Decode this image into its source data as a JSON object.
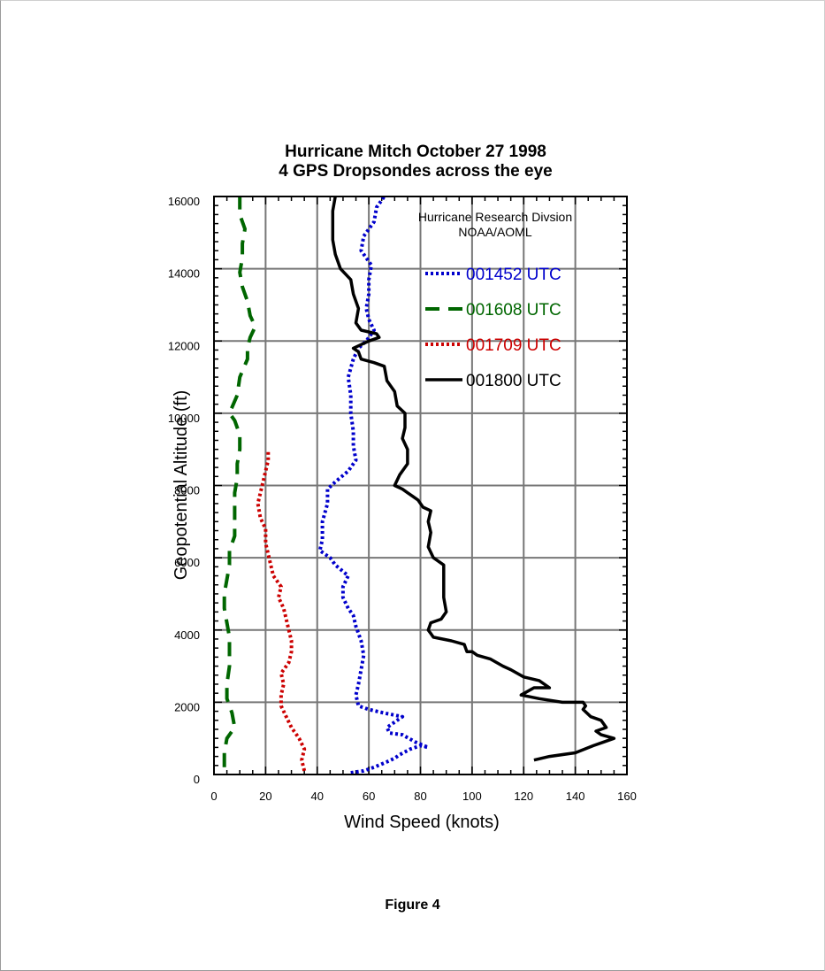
{
  "figure_caption": "Figure 4",
  "chart_data": {
    "type": "line",
    "title": "Hurricane Mitch October 27 1998",
    "subtitle": "4 GPS Dropsondes across the eye",
    "xlabel": "Wind Speed (knots)",
    "ylabel": "Geopotential Altitude (ft)",
    "xlim": [
      0,
      160
    ],
    "ylim": [
      0,
      16000
    ],
    "x_ticks": [
      "0",
      "20",
      "40",
      "60",
      "80",
      "100",
      "120",
      "140",
      "160"
    ],
    "y_ticks": [
      "0",
      "2000",
      "4000",
      "6000",
      "8000",
      "10000",
      "12000",
      "14000",
      "16000"
    ],
    "grid": true,
    "credit_line1": "Hurricane Research Divsion",
    "credit_line2": "NOAA/AOML",
    "legend_placement": "top-right",
    "series": [
      {
        "name": "001452 UTC",
        "color": "#0000cc",
        "style": "dotted",
        "points": [
          [
            53,
            50
          ],
          [
            58,
            100
          ],
          [
            62,
            200
          ],
          [
            67,
            350
          ],
          [
            70,
            450
          ],
          [
            72,
            550
          ],
          [
            76,
            700
          ],
          [
            80,
            800
          ],
          [
            83,
            750
          ],
          [
            78,
            900
          ],
          [
            73,
            1100
          ],
          [
            68,
            1150
          ],
          [
            67,
            1300
          ],
          [
            70,
            1450
          ],
          [
            73,
            1600
          ],
          [
            66,
            1700
          ],
          [
            60,
            1800
          ],
          [
            56,
            1900
          ],
          [
            55,
            2200
          ],
          [
            56,
            2500
          ],
          [
            57,
            2900
          ],
          [
            58,
            3300
          ],
          [
            57,
            3700
          ],
          [
            55,
            4100
          ],
          [
            54,
            4400
          ],
          [
            52,
            4600
          ],
          [
            50,
            4900
          ],
          [
            50,
            5200
          ],
          [
            52,
            5500
          ],
          [
            47,
            5800
          ],
          [
            45,
            6000
          ],
          [
            41,
            6200
          ],
          [
            42,
            6500
          ],
          [
            42,
            7000
          ],
          [
            44,
            7500
          ],
          [
            44,
            7900
          ],
          [
            47,
            8100
          ],
          [
            52,
            8400
          ],
          [
            55,
            8700
          ],
          [
            54,
            9100
          ],
          [
            54,
            9500
          ],
          [
            53,
            10000
          ],
          [
            53,
            10500
          ],
          [
            52,
            11000
          ],
          [
            54,
            11500
          ],
          [
            56,
            11800
          ],
          [
            59,
            12000
          ],
          [
            62,
            12300
          ],
          [
            60,
            12600
          ],
          [
            59,
            12900
          ],
          [
            60,
            13300
          ],
          [
            60,
            13700
          ],
          [
            61,
            14100
          ],
          [
            57,
            14500
          ],
          [
            58,
            14900
          ],
          [
            62,
            15300
          ],
          [
            63,
            15700
          ],
          [
            66,
            16000
          ]
        ]
      },
      {
        "name": "001608 UTC",
        "color": "#006600",
        "style": "dashed",
        "points": [
          [
            4,
            200
          ],
          [
            4,
            600
          ],
          [
            5,
            1000
          ],
          [
            8,
            1300
          ],
          [
            7,
            1700
          ],
          [
            5,
            2100
          ],
          [
            5,
            2500
          ],
          [
            6,
            3000
          ],
          [
            6,
            3400
          ],
          [
            6,
            3800
          ],
          [
            5,
            4200
          ],
          [
            4,
            4600
          ],
          [
            4,
            5000
          ],
          [
            5,
            5400
          ],
          [
            6,
            5800
          ],
          [
            6,
            6200
          ],
          [
            8,
            6600
          ],
          [
            8,
            7000
          ],
          [
            8,
            7400
          ],
          [
            8,
            7800
          ],
          [
            9,
            8200
          ],
          [
            9,
            8600
          ],
          [
            10,
            9000
          ],
          [
            10,
            9400
          ],
          [
            8,
            9800
          ],
          [
            6,
            10000
          ],
          [
            9,
            10500
          ],
          [
            10,
            11000
          ],
          [
            13,
            11500
          ],
          [
            13,
            11800
          ],
          [
            14,
            12100
          ],
          [
            16,
            12400
          ],
          [
            14,
            12700
          ],
          [
            13,
            13100
          ],
          [
            11,
            13500
          ],
          [
            10,
            13900
          ],
          [
            11,
            14300
          ],
          [
            11,
            14700
          ],
          [
            12,
            15100
          ],
          [
            10,
            15500
          ],
          [
            10,
            15800
          ],
          [
            10,
            16000
          ]
        ]
      },
      {
        "name": "001709 UTC",
        "color": "#cc0000",
        "style": "dotted",
        "points": [
          [
            35,
            100
          ],
          [
            34,
            400
          ],
          [
            35,
            700
          ],
          [
            33,
            1000
          ],
          [
            30,
            1300
          ],
          [
            28,
            1600
          ],
          [
            26,
            1900
          ],
          [
            26,
            2200
          ],
          [
            27,
            2500
          ],
          [
            26,
            2800
          ],
          [
            29,
            3100
          ],
          [
            30,
            3400
          ],
          [
            30,
            3700
          ],
          [
            29,
            4000
          ],
          [
            28,
            4300
          ],
          [
            27,
            4600
          ],
          [
            25,
            4900
          ],
          [
            26,
            5200
          ],
          [
            23,
            5500
          ],
          [
            22,
            5800
          ],
          [
            21,
            6100
          ],
          [
            20,
            6400
          ],
          [
            20,
            6800
          ],
          [
            18,
            7100
          ],
          [
            17,
            7500
          ],
          [
            18,
            7800
          ],
          [
            19,
            8100
          ],
          [
            20,
            8400
          ],
          [
            21,
            8700
          ],
          [
            21,
            9000
          ]
        ]
      },
      {
        "name": "001800 UTC",
        "color": "#000000",
        "style": "solid",
        "points": [
          [
            124,
            400
          ],
          [
            130,
            500
          ],
          [
            140,
            600
          ],
          [
            147,
            800
          ],
          [
            151,
            900
          ],
          [
            155,
            1000
          ],
          [
            150,
            1100
          ],
          [
            148,
            1200
          ],
          [
            152,
            1300
          ],
          [
            150,
            1500
          ],
          [
            146,
            1600
          ],
          [
            143,
            1800
          ],
          [
            144,
            1900
          ],
          [
            143,
            2000
          ],
          [
            135,
            2000
          ],
          [
            126,
            2100
          ],
          [
            119,
            2200
          ],
          [
            124,
            2400
          ],
          [
            130,
            2400
          ],
          [
            126,
            2600
          ],
          [
            120,
            2700
          ],
          [
            115,
            2900
          ],
          [
            112,
            3000
          ],
          [
            107,
            3200
          ],
          [
            102,
            3300
          ],
          [
            100,
            3400
          ],
          [
            98,
            3400
          ],
          [
            97,
            3600
          ],
          [
            92,
            3700
          ],
          [
            85,
            3800
          ],
          [
            84,
            3900
          ],
          [
            83,
            4000
          ],
          [
            84,
            4200
          ],
          [
            88,
            4300
          ],
          [
            90,
            4500
          ],
          [
            89,
            4900
          ],
          [
            89,
            5400
          ],
          [
            89,
            5800
          ],
          [
            85,
            6000
          ],
          [
            83,
            6300
          ],
          [
            84,
            6700
          ],
          [
            83,
            7000
          ],
          [
            84,
            7300
          ],
          [
            81,
            7400
          ],
          [
            79,
            7600
          ],
          [
            77,
            7700
          ],
          [
            75,
            7800
          ],
          [
            73,
            7900
          ],
          [
            70,
            8000
          ],
          [
            72,
            8300
          ],
          [
            75,
            8600
          ],
          [
            75,
            9000
          ],
          [
            73,
            9300
          ],
          [
            74,
            9600
          ],
          [
            74,
            9900
          ],
          [
            74,
            10000
          ],
          [
            71,
            10200
          ],
          [
            70,
            10600
          ],
          [
            67,
            10900
          ],
          [
            66,
            11300
          ],
          [
            62,
            11400
          ],
          [
            57,
            11500
          ],
          [
            56,
            11700
          ],
          [
            54,
            11800
          ],
          [
            57,
            11900
          ],
          [
            60,
            12000
          ],
          [
            64,
            12100
          ],
          [
            63,
            12200
          ],
          [
            57,
            12300
          ],
          [
            55,
            12500
          ],
          [
            56,
            12900
          ],
          [
            54,
            13300
          ],
          [
            53,
            13700
          ],
          [
            49,
            14000
          ],
          [
            47,
            14400
          ],
          [
            46,
            14800
          ],
          [
            46,
            15200
          ],
          [
            46,
            15600
          ],
          [
            47,
            16000
          ]
        ]
      }
    ]
  }
}
